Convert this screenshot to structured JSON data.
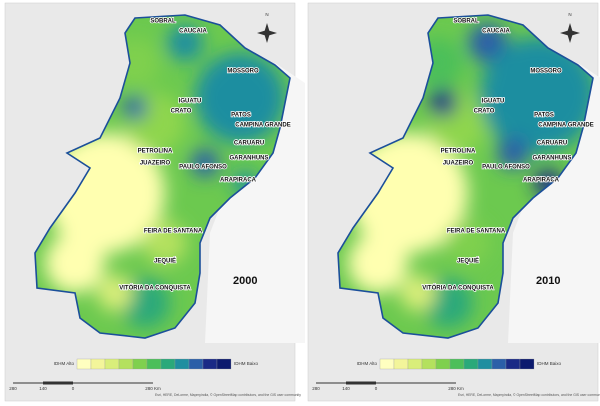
{
  "maps": [
    {
      "year": "2000",
      "north": "N",
      "cities": [
        "SOBRAL",
        "CAUCAIA",
        "MOSSORO",
        "IGUATU",
        "CRATO",
        "PATOS",
        "CAMPINA GRANDE",
        "CARUARU",
        "PETROLINA",
        "JUAZEIRO",
        "PAULO AFONSO",
        "GARANHUNS",
        "ARAPIRACA",
        "FEIRA DE SANTANA",
        "JEQUIÉ",
        "VITÓRIA DA CONQUISTA"
      ],
      "legend": {
        "high": "IDHM Alto",
        "low": "IDHM Baixo",
        "colors": [
          "#ffffc0",
          "#f3f59a",
          "#d9ee7a",
          "#b4e15e",
          "#7fd04e",
          "#4cbf5a",
          "#2aa97a",
          "#1f8ea0",
          "#2b5fa8",
          "#1a2a86",
          "#0c1a6e"
        ]
      },
      "scale": [
        "280",
        "140",
        "0",
        "280 Km"
      ],
      "attribution": "Esri, HERE, DeLorme, Mapmyindia, © OpenStreetMap contributors, and the GIS user community"
    },
    {
      "year": "2010",
      "north": "N",
      "cities": [
        "SOBRAL",
        "CAUCAIA",
        "MOSSORO",
        "IGUATU",
        "CRATO",
        "PATOS",
        "CAMPINA GRANDE",
        "CARUARU",
        "PETROLINA",
        "JUAZEIRO",
        "PAULO AFONSO",
        "GARANHUNS",
        "ARAPIRACA",
        "FEIRA DE SANTANA",
        "JEQUIÉ",
        "VITÓRIA DA CONQUISTA"
      ],
      "legend": {
        "high": "IDHM Alto",
        "low": "IDHM Baixo",
        "colors": [
          "#ffffc0",
          "#f3f59a",
          "#d9ee7a",
          "#b4e15e",
          "#7fd04e",
          "#4cbf5a",
          "#2aa97a",
          "#1f8ea0",
          "#2b5fa8",
          "#1a2a86",
          "#0c1a6e"
        ]
      },
      "scale": [
        "280",
        "140",
        "0",
        "280 Km"
      ],
      "attribution": "Esri, HERE, DeLorme, Mapmyindia, © OpenStreetMap contributors, and the GIS user community"
    }
  ]
}
